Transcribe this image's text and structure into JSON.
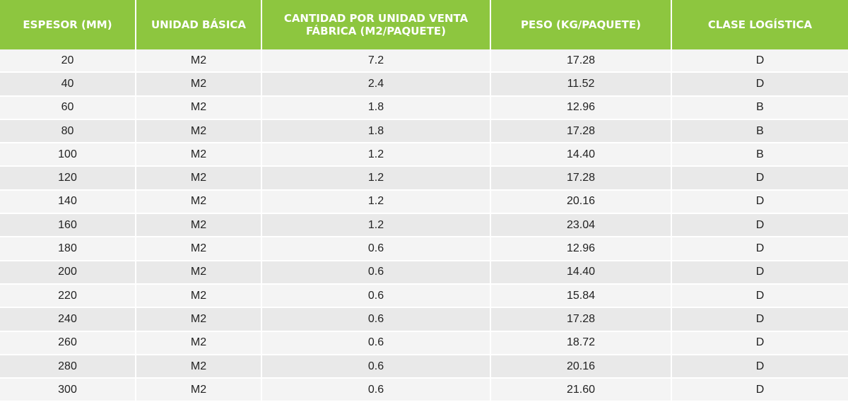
{
  "table": {
    "headers": [
      "Espesor (mm)",
      "Unidad básica",
      "Cantidad por unidad venta fábrica (m2/paquete)",
      "Peso (kg/paquete)",
      "Clase logística"
    ],
    "rows": [
      [
        "20",
        "M2",
        "7.2",
        "17.28",
        "D"
      ],
      [
        "40",
        "M2",
        "2.4",
        "11.52",
        "D"
      ],
      [
        "60",
        "M2",
        "1.8",
        "12.96",
        "B"
      ],
      [
        "80",
        "M2",
        "1.8",
        "17.28",
        "B"
      ],
      [
        "100",
        "M2",
        "1.2",
        "14.40",
        "B"
      ],
      [
        "120",
        "M2",
        "1.2",
        "17.28",
        "D"
      ],
      [
        "140",
        "M2",
        "1.2",
        "20.16",
        "D"
      ],
      [
        "160",
        "M2",
        "1.2",
        "23.04",
        "D"
      ],
      [
        "180",
        "M2",
        "0.6",
        "12.96",
        "D"
      ],
      [
        "200",
        "M2",
        "0.6",
        "14.40",
        "D"
      ],
      [
        "220",
        "M2",
        "0.6",
        "15.84",
        "D"
      ],
      [
        "240",
        "M2",
        "0.6",
        "17.28",
        "D"
      ],
      [
        "260",
        "M2",
        "0.6",
        "18.72",
        "D"
      ],
      [
        "280",
        "M2",
        "0.6",
        "20.16",
        "D"
      ],
      [
        "300",
        "M2",
        "0.6",
        "21.60",
        "D"
      ]
    ]
  },
  "colors": {
    "header_bg": "#8dc63f",
    "header_text": "#ffffff",
    "row_odd": "#f4f4f4",
    "row_even": "#e9e9e9"
  }
}
